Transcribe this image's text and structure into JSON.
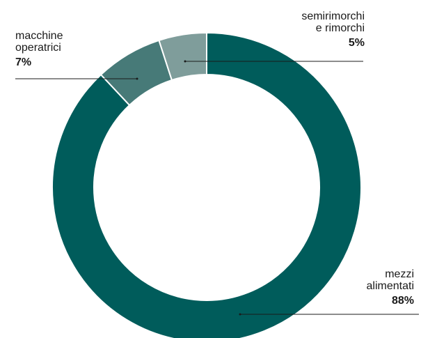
{
  "chart_data": {
    "type": "pie",
    "style": "donut",
    "slices": [
      {
        "label": [
          "mezzi",
          "alimentati"
        ],
        "value": 88,
        "display": "88%",
        "color": "#005c5b"
      },
      {
        "label": [
          "macchine",
          "operatrici"
        ],
        "value": 7,
        "display": "7%",
        "color": "#477a78"
      },
      {
        "label": [
          "semirimorchi",
          "e rimorchi"
        ],
        "value": 5,
        "display": "5%",
        "color": "#7f9d9b"
      }
    ]
  }
}
